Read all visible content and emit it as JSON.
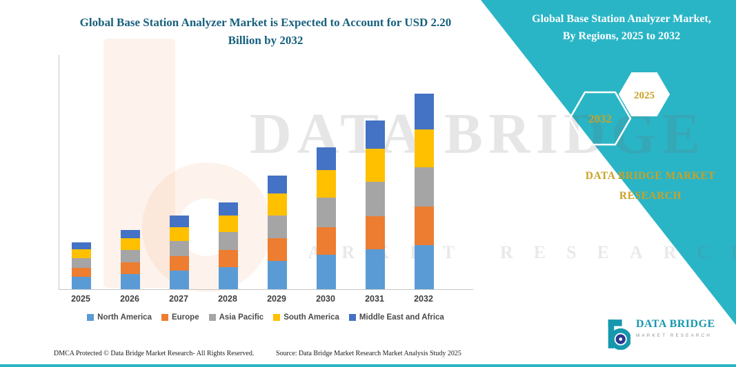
{
  "header": {
    "title_line1": "Global Base Station Analyzer Market is Expected to Account for USD 2.20",
    "title_line2": "Billion by 2032"
  },
  "banner": {
    "title_line1": "Global Base Station Analyzer Market,",
    "title_line2": "By Regions, 2025 to 2032",
    "hexagon_back_year": "2032",
    "hexagon_front_year": "2025",
    "brand_line1": "DATA BRIDGE MARKET",
    "brand_line2": "RESEARCH"
  },
  "watermark": {
    "line1": "DATA BRIDGE",
    "line2": "MARKET RESEARCH"
  },
  "colors": {
    "teal": "#2AB5C6",
    "gold": "#C9A227",
    "title_text": "#17607E"
  },
  "chart_data": {
    "type": "bar",
    "stacked": true,
    "title": "Global Base Station Analyzer Market is Expected to Account for USD 2.20 Billion by 2032",
    "value_unit": "USD Billion",
    "categories": [
      "2025",
      "2026",
      "2027",
      "2028",
      "2029",
      "2030",
      "2031",
      "2032"
    ],
    "series": [
      {
        "name": "North America",
        "color": "#5B9BD5",
        "values": [
          0.14,
          0.17,
          0.21,
          0.25,
          0.32,
          0.39,
          0.45,
          0.5
        ]
      },
      {
        "name": "Europe",
        "color": "#ED7D31",
        "values": [
          0.1,
          0.13,
          0.16,
          0.19,
          0.25,
          0.31,
          0.37,
          0.43
        ]
      },
      {
        "name": "Asia Pacific",
        "color": "#A5A5A5",
        "values": [
          0.11,
          0.14,
          0.17,
          0.2,
          0.26,
          0.33,
          0.39,
          0.44
        ]
      },
      {
        "name": "South America",
        "color": "#FFC000",
        "values": [
          0.1,
          0.13,
          0.16,
          0.19,
          0.25,
          0.31,
          0.37,
          0.43
        ]
      },
      {
        "name": "Middle East and Africa",
        "color": "#4472C4",
        "values": [
          0.08,
          0.1,
          0.13,
          0.15,
          0.2,
          0.26,
          0.32,
          0.4
        ]
      }
    ],
    "totals": [
      0.53,
      0.67,
      0.83,
      0.98,
      1.28,
      1.6,
      1.9,
      2.2
    ],
    "xlabel": "",
    "ylabel": "",
    "ylim": [
      0,
      2.6
    ],
    "grid": false,
    "y_axis_labels_visible": false,
    "legend_position": "bottom"
  },
  "footer": {
    "dmca": "DMCA Protected © Data Bridge Market Research-  All Rights Reserved.",
    "source": "Source: Data Bridge Market Research  Market Analysis Study 2025"
  },
  "logo": {
    "name": "DATA BRIDGE",
    "subtitle": "MARKET RESEARCH"
  }
}
